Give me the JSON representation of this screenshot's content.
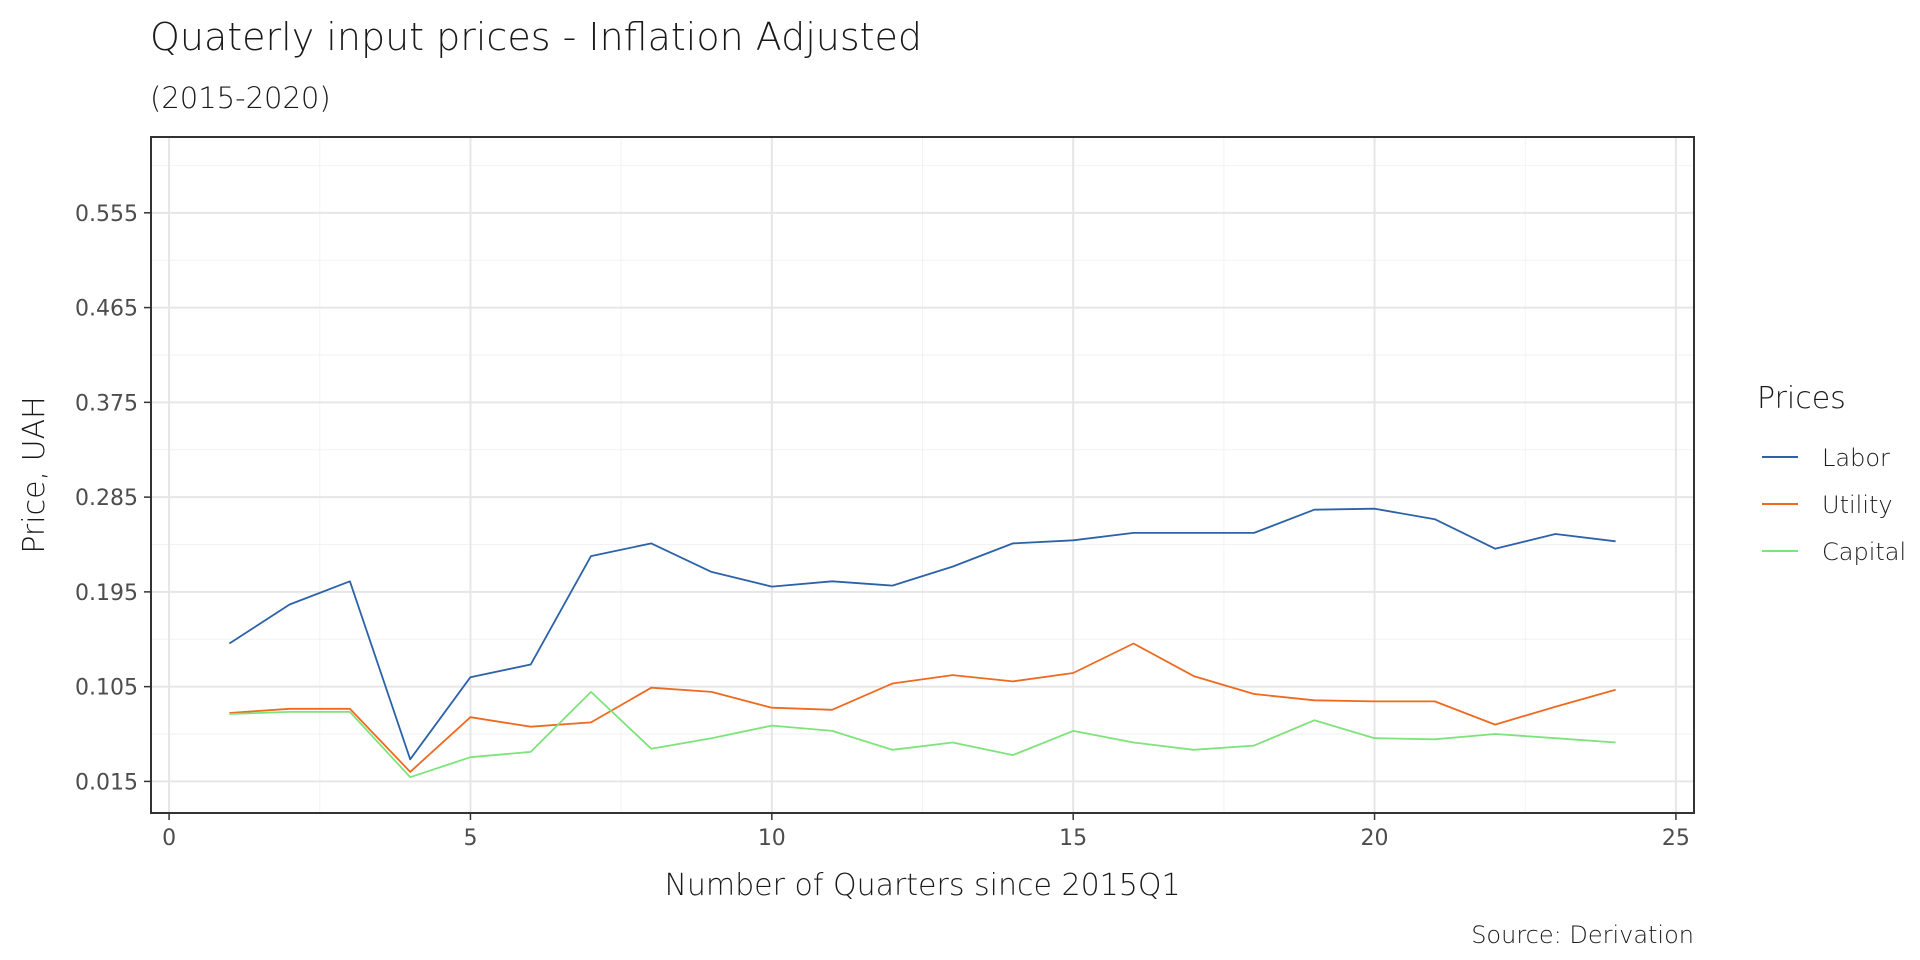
{
  "chart_data": {
    "type": "line",
    "title": "Quaterly input prices - Inflation Adjusted",
    "subtitle": "(2015-2020)",
    "xlabel": "Number of Quarters since 2015Q1",
    "ylabel": "Price, UAH",
    "caption": "Source: Derivation",
    "xlim": [
      -0.3,
      25.3
    ],
    "ylim": [
      -0.015,
      0.627
    ],
    "x_ticks": [
      0,
      5,
      10,
      15,
      20,
      25
    ],
    "x_tick_labels": [
      "0",
      "5",
      "10",
      "15",
      "20",
      "25"
    ],
    "y_ticks": [
      0.015,
      0.105,
      0.195,
      0.285,
      0.375,
      0.465,
      0.555
    ],
    "y_tick_labels": [
      "0.015",
      "0.105",
      "0.195",
      "0.285",
      "0.375",
      "0.465",
      "0.555"
    ],
    "grid": true,
    "legend": {
      "title": "Prices",
      "position": "right"
    },
    "x": [
      1,
      2,
      3,
      4,
      5,
      6,
      7,
      8,
      9,
      10,
      11,
      12,
      13,
      14,
      15,
      16,
      17,
      18,
      19,
      20,
      21,
      22,
      23,
      24
    ],
    "series": [
      {
        "name": "Labor",
        "color": "#2c62a8",
        "values": [
          0.146,
          0.183,
          0.205,
          0.036,
          0.114,
          0.126,
          0.229,
          0.241,
          0.214,
          0.2,
          0.205,
          0.201,
          0.219,
          0.241,
          0.244,
          0.251,
          0.251,
          0.251,
          0.273,
          0.274,
          0.264,
          0.236,
          0.25,
          0.243
        ]
      },
      {
        "name": "Utility",
        "color": "#ee6a1e",
        "values": [
          0.08,
          0.084,
          0.084,
          0.024,
          0.076,
          0.067,
          0.071,
          0.104,
          0.1,
          0.085,
          0.083,
          0.108,
          0.116,
          0.11,
          0.118,
          0.146,
          0.115,
          0.098,
          0.092,
          0.091,
          0.091,
          0.069,
          0.086,
          0.102
        ]
      },
      {
        "name": "Capital",
        "color": "#7ee37a",
        "values": [
          0.079,
          0.081,
          0.081,
          0.019,
          0.038,
          0.043,
          0.1,
          0.046,
          0.056,
          0.068,
          0.063,
          0.045,
          0.052,
          0.04,
          0.063,
          0.052,
          0.045,
          0.049,
          0.073,
          0.056,
          0.055,
          0.06,
          0.056,
          0.052
        ]
      }
    ]
  }
}
